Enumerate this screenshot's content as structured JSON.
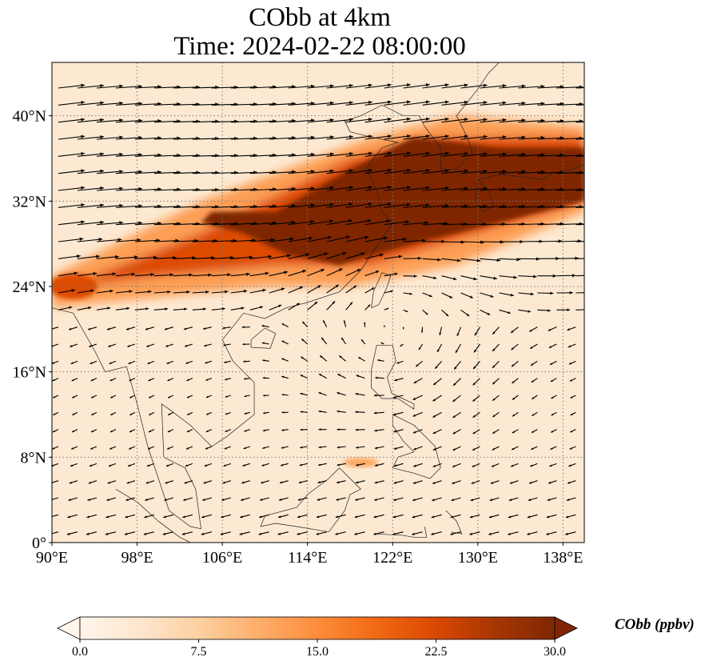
{
  "title_line1": "CObb at 4km",
  "title_line2": "Time: 2024-02-22 08:00:00",
  "colorbar": {
    "label": "CObb (ppbv)",
    "ticks": [
      "0.0",
      "7.5",
      "15.0",
      "22.5",
      "30.0"
    ],
    "min": 0,
    "max": 30,
    "colormap": [
      "#fff5eb",
      "#fee6ce",
      "#fdd0a2",
      "#fdae6b",
      "#fd8d3c",
      "#f16913",
      "#d94801",
      "#a63603",
      "#7f2704"
    ]
  },
  "chart_data": {
    "type": "heatmap",
    "title": "CObb at 4km",
    "subtitle": "Time: 2024-02-22 08:00:00",
    "xlim": [
      90,
      140
    ],
    "ylim": [
      0,
      45
    ],
    "x_ticks": [
      90,
      98,
      106,
      114,
      122,
      130,
      138
    ],
    "y_ticks": [
      0,
      8,
      16,
      24,
      32,
      40
    ],
    "x_tick_labels": [
      "90°E",
      "98°E",
      "106°E",
      "114°E",
      "122°E",
      "130°E",
      "138°E"
    ],
    "y_tick_labels": [
      "0°",
      "8°N",
      "16°N",
      "24°N",
      "32°N",
      "40°N"
    ],
    "grid": "dotted",
    "colorbar_label": "CObb (ppbv)",
    "value_range": [
      0,
      30
    ],
    "plume": {
      "description_ppbv": "high CObb band from southwest to northeast",
      "core_lon": [
        111,
        140
      ],
      "core_lat": [
        27,
        39
      ],
      "core_value": 30,
      "edge_value": 10
    },
    "wind": "arrow field; strong westerlies north of 20°N, anticyclonic flow near 122°E 20°N, northeasterlies in south"
  }
}
